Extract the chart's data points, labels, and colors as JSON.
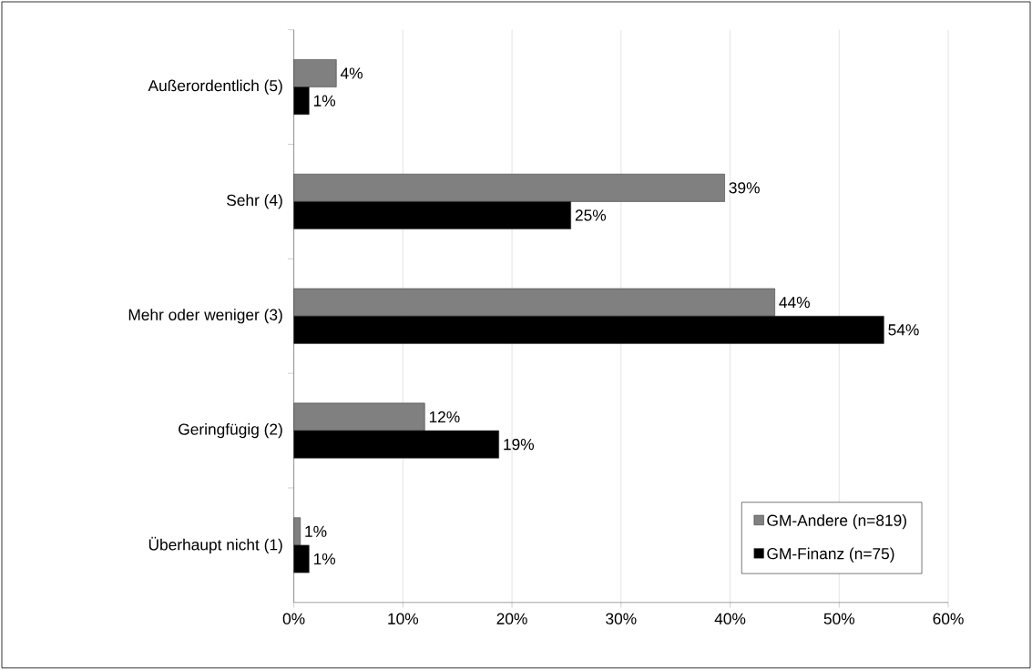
{
  "chart_data": {
    "type": "bar",
    "orientation": "horizontal",
    "categories": [
      "Außerordentlich (5)",
      "Sehr (4)",
      "Mehr oder weniger (3)",
      "Geringfügig (2)",
      "Überhaupt nicht (1)"
    ],
    "series": [
      {
        "name": "GM-Andere (n=819)",
        "color": "#808080",
        "values": [
          3.9,
          39.5,
          44.1,
          12.0,
          0.6
        ],
        "value_labels": [
          "4%",
          "39%",
          "44%",
          "12%",
          "1%"
        ]
      },
      {
        "name": "GM-Finanz (n=75)",
        "color": "#000000",
        "values": [
          1.4,
          25.4,
          54.1,
          18.8,
          1.4
        ],
        "value_labels": [
          "1%",
          "25%",
          "54%",
          "19%",
          "1%"
        ]
      }
    ],
    "xlim": [
      0,
      60
    ],
    "xticks": [
      {
        "value": 0,
        "label": "0%"
      },
      {
        "value": 10,
        "label": "10%"
      },
      {
        "value": 20,
        "label": "20%"
      },
      {
        "value": 30,
        "label": "30%"
      },
      {
        "value": 40,
        "label": "40%"
      },
      {
        "value": 50,
        "label": "50%"
      },
      {
        "value": 60,
        "label": "60%"
      }
    ],
    "grid": "x",
    "legend": "bottom right"
  }
}
